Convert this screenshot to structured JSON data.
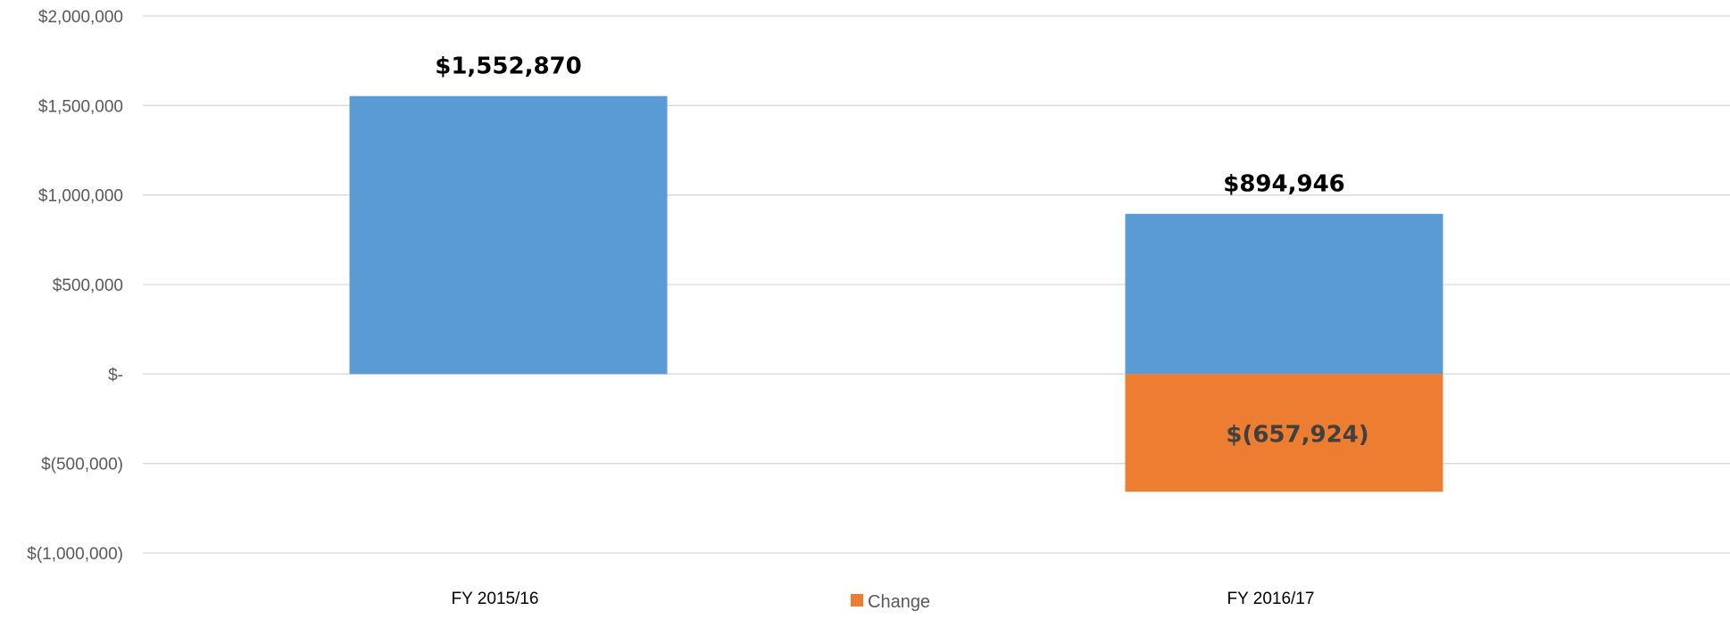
{
  "chart_data": {
    "type": "bar",
    "categories": [
      "FY 2015/16",
      "FY 2016/17"
    ],
    "series": [
      {
        "name": "",
        "color": "#5b9bd5",
        "values": [
          1552870,
          894946
        ]
      },
      {
        "name": "Change",
        "color": "#ed7d31",
        "values": [
          null,
          -657924
        ]
      }
    ],
    "data_labels": [
      {
        "series": 0,
        "index": 0,
        "text": "$1,552,870",
        "color": "#000000"
      },
      {
        "series": 0,
        "index": 1,
        "text": "$894,946",
        "color": "#000000"
      },
      {
        "series": 1,
        "index": 1,
        "text": "$(657,924)",
        "color": "#404040"
      }
    ],
    "ylim": [
      -1000000,
      2000000
    ],
    "yticks": [
      {
        "value": 2000000,
        "label": "$2,000,000"
      },
      {
        "value": 1500000,
        "label": "$1,500,000"
      },
      {
        "value": 1000000,
        "label": "$1,000,000"
      },
      {
        "value": 500000,
        "label": "$500,000"
      },
      {
        "value": 0,
        "label": "$-"
      },
      {
        "value": -500000,
        "label": "$(500,000)"
      },
      {
        "value": -1000000,
        "label": "$(1,000,000)"
      }
    ],
    "grid": true,
    "legend": {
      "position": "bottom",
      "entries": [
        {
          "series": 1,
          "label": "Change",
          "color": "#ed7d31"
        }
      ]
    }
  }
}
